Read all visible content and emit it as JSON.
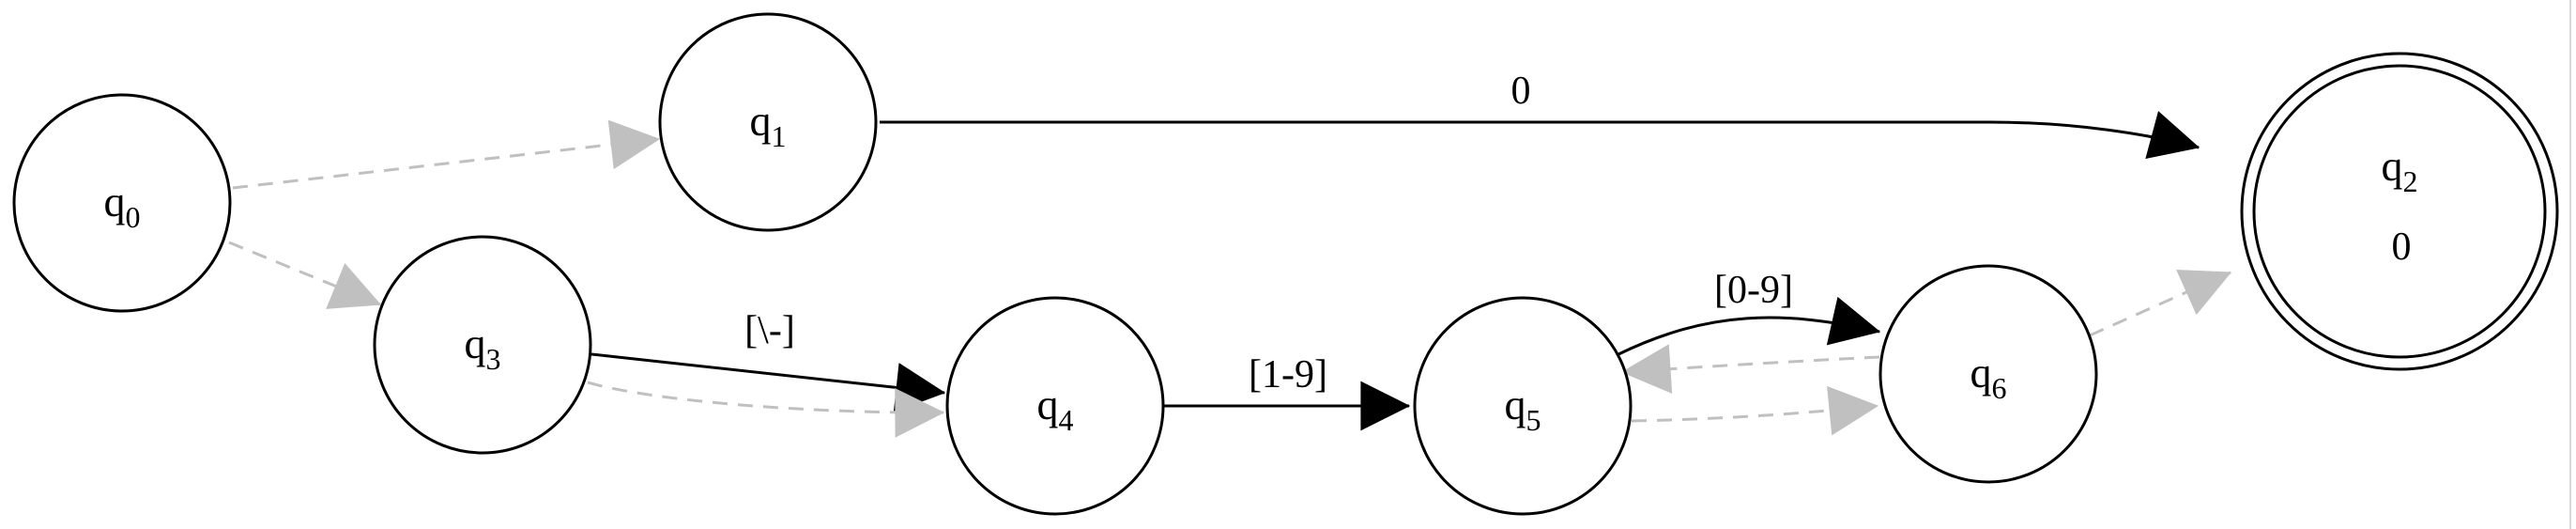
{
  "diagram": {
    "type": "finite automaton",
    "states": [
      {
        "id": "q0",
        "name": "q",
        "sub": "0",
        "output": "",
        "accepting": false
      },
      {
        "id": "q1",
        "name": "q",
        "sub": "1",
        "output": "",
        "accepting": false
      },
      {
        "id": "q2",
        "name": "q",
        "sub": "2",
        "output": "0",
        "accepting": true
      },
      {
        "id": "q3",
        "name": "q",
        "sub": "3",
        "output": "",
        "accepting": false
      },
      {
        "id": "q4",
        "name": "q",
        "sub": "4",
        "output": "",
        "accepting": false
      },
      {
        "id": "q5",
        "name": "q",
        "sub": "5",
        "output": "",
        "accepting": false
      },
      {
        "id": "q6",
        "name": "q",
        "sub": "6",
        "output": "",
        "accepting": false
      }
    ],
    "transitions": [
      {
        "id": "q0-q1",
        "from": "q0",
        "to": "q1",
        "label": "",
        "style": "dashed-gray"
      },
      {
        "id": "q0-q3",
        "from": "q0",
        "to": "q3",
        "label": "",
        "style": "dashed-gray"
      },
      {
        "id": "q1-q2",
        "from": "q1",
        "to": "q2",
        "label": "0",
        "style": "solid"
      },
      {
        "id": "q3-q4-solid",
        "from": "q3",
        "to": "q4",
        "label": "[\\-]",
        "style": "solid"
      },
      {
        "id": "q3-q4-eps",
        "from": "q3",
        "to": "q4",
        "label": "",
        "style": "dashed-gray"
      },
      {
        "id": "q4-q5",
        "from": "q4",
        "to": "q5",
        "label": "[1-9]",
        "style": "solid"
      },
      {
        "id": "q5-q6-solid",
        "from": "q5",
        "to": "q6",
        "label": "[0-9]",
        "style": "solid"
      },
      {
        "id": "q5-q6-eps",
        "from": "q5",
        "to": "q6",
        "label": "",
        "style": "dashed-gray"
      },
      {
        "id": "q6-q5-eps",
        "from": "q6",
        "to": "q5",
        "label": "",
        "style": "dashed-gray"
      },
      {
        "id": "q6-q2-eps",
        "from": "q6",
        "to": "q2",
        "label": "",
        "style": "dashed-gray"
      }
    ],
    "colors": {
      "node_stroke": "#000000",
      "solid_edge": "#000000",
      "epsilon_edge": "#c0c0c0",
      "background": "#ffffff"
    }
  }
}
